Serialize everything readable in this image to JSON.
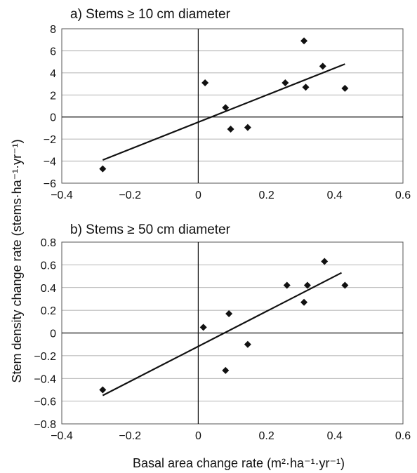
{
  "ylabel": "Stem density change rate (stems·ha⁻¹·yr⁻¹)",
  "xlabel": "Basal area change rate (m²·ha⁻¹·yr⁻¹)",
  "chart_data": [
    {
      "type": "scatter",
      "title": "a) Stems ≥ 10 cm diameter",
      "xlim": [
        -0.4,
        0.6
      ],
      "ylim": [
        -6,
        8
      ],
      "x_ticks": [
        -0.4,
        -0.2,
        0,
        0.2,
        0.4,
        0.6
      ],
      "x_tick_labels": [
        "−0.4",
        "−0.2",
        "0",
        "0.2",
        "0.4",
        "0.6"
      ],
      "y_ticks": [
        -6,
        -4,
        -2,
        0,
        2,
        4,
        6,
        8
      ],
      "y_tick_labels": [
        "−6",
        "−4",
        "−2",
        "0",
        "2",
        "4",
        "6",
        "8"
      ],
      "grid": "horizontal",
      "points": [
        {
          "x": -0.28,
          "y": -4.7
        },
        {
          "x": 0.02,
          "y": 3.1
        },
        {
          "x": 0.08,
          "y": 0.85
        },
        {
          "x": 0.095,
          "y": -1.1
        },
        {
          "x": 0.145,
          "y": -0.95
        },
        {
          "x": 0.255,
          "y": 3.1
        },
        {
          "x": 0.31,
          "y": 6.9
        },
        {
          "x": 0.315,
          "y": 2.7
        },
        {
          "x": 0.365,
          "y": 4.6
        },
        {
          "x": 0.43,
          "y": 2.6
        }
      ],
      "trendline": [
        {
          "x": -0.28,
          "y": -3.9
        },
        {
          "x": 0.43,
          "y": 4.8
        }
      ]
    },
    {
      "type": "scatter",
      "title": "b) Stems ≥ 50 cm diameter",
      "xlim": [
        -0.4,
        0.6
      ],
      "ylim": [
        -0.8,
        0.8
      ],
      "x_ticks": [
        -0.4,
        -0.2,
        0,
        0.2,
        0.4,
        0.6
      ],
      "x_tick_labels": [
        "−0.4",
        "−0.2",
        "0",
        "0.2",
        "0.4",
        "0.6"
      ],
      "y_ticks": [
        -0.8,
        -0.6,
        -0.4,
        -0.2,
        0,
        0.2,
        0.4,
        0.6,
        0.8
      ],
      "y_tick_labels": [
        "−0.8",
        "−0.6",
        "−0.4",
        "−0.2",
        "0",
        "0.2",
        "0.4",
        "0.6",
        "0.8"
      ],
      "grid": "horizontal",
      "points": [
        {
          "x": -0.28,
          "y": -0.5
        },
        {
          "x": 0.015,
          "y": 0.05
        },
        {
          "x": 0.08,
          "y": -0.33
        },
        {
          "x": 0.09,
          "y": 0.17
        },
        {
          "x": 0.145,
          "y": -0.1
        },
        {
          "x": 0.26,
          "y": 0.42
        },
        {
          "x": 0.31,
          "y": 0.27
        },
        {
          "x": 0.32,
          "y": 0.42
        },
        {
          "x": 0.37,
          "y": 0.63
        },
        {
          "x": 0.43,
          "y": 0.42
        }
      ],
      "trendline": [
        {
          "x": -0.28,
          "y": -0.55
        },
        {
          "x": 0.42,
          "y": 0.53
        }
      ]
    }
  ]
}
